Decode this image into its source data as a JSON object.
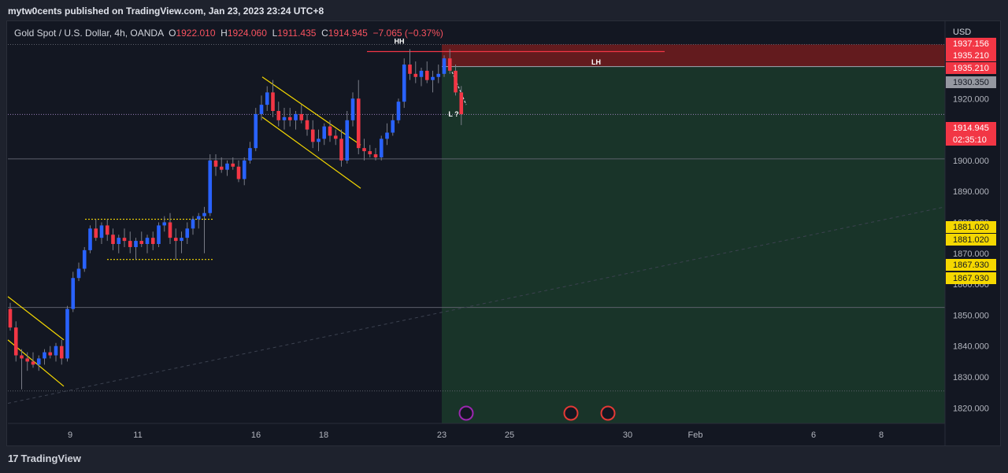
{
  "header": {
    "published": "mytw0cents published on TradingView.com, Jan 23, 2023 23:24 UTC+8"
  },
  "legend": {
    "symbol": "Gold Spot / U.S. Dollar, 4h, OANDA",
    "o_label": "O",
    "o": "1922.010",
    "h_label": "H",
    "h": "1924.060",
    "l_label": "L",
    "l": "1911.435",
    "c_label": "C",
    "c": "1914.945",
    "change": "−7.065 (−0.37%)"
  },
  "footer": {
    "brand": "TradingView",
    "logo_icon": "tradingview-logo-icon"
  },
  "colors": {
    "background": "#131722",
    "grid": "#2a2e39",
    "up": "#2962ff",
    "down": "#f23645",
    "pattern": "#f5d800",
    "stop_zone": "#7f1d1d",
    "target_zone": "#1b3a2a"
  },
  "chart_data": {
    "type": "candlestick",
    "title": "",
    "xlabel": "",
    "ylabel": "",
    "currency_label": "USD",
    "ylim": [
      1815,
      1945
    ],
    "x_ticks": [
      "9",
      "11",
      "16",
      "18",
      "23",
      "25",
      "30",
      "Feb",
      "6",
      "8"
    ],
    "y_ticks": [
      "1820.000",
      "1830.000",
      "1840.000",
      "1850.000",
      "1860.000",
      "1870.000",
      "1880.000",
      "1890.000",
      "1900.000",
      "1920.000"
    ],
    "price_labels": [
      {
        "text": "1937.156",
        "value": 1937.156,
        "kind": "red"
      },
      {
        "text": "1935.210",
        "value": 1935.21,
        "kind": "red"
      },
      {
        "text": "1935.210",
        "value": 1935.21,
        "kind": "red"
      },
      {
        "text": "1930.350",
        "value": 1930.35,
        "kind": "gray"
      },
      {
        "text": "1914.945",
        "value": 1914.945,
        "kind": "red"
      },
      {
        "text": "02:35:10",
        "value": 1914.945,
        "kind": "countdown"
      },
      {
        "text": "1881.020",
        "value": 1881.02,
        "kind": "yellow"
      },
      {
        "text": "1881.020",
        "value": 1881.02,
        "kind": "yellow"
      },
      {
        "text": "1867.930",
        "value": 1867.93,
        "kind": "yellow"
      },
      {
        "text": "1867.930",
        "value": 1867.93,
        "kind": "yellow"
      }
    ],
    "annotations": [
      {
        "text": "HH",
        "value": 1938.5
      },
      {
        "text": "LH",
        "value": 1931.8
      },
      {
        "text": "L ?",
        "value": 1915
      }
    ],
    "horizontal_levels": [
      1937.5,
      1914.9,
      1900.5,
      1852.5,
      1825.5
    ],
    "zones": [
      {
        "name": "stop",
        "top": 1937.5,
        "bottom": 1930.35
      },
      {
        "name": "target",
        "top": 1930.35,
        "bottom": 1815
      }
    ],
    "candles": [
      {
        "o": 1852,
        "h": 1854,
        "l": 1845,
        "c": 1846
      },
      {
        "o": 1846,
        "h": 1848,
        "l": 1835,
        "c": 1837
      },
      {
        "o": 1837,
        "h": 1839,
        "l": 1826,
        "c": 1836
      },
      {
        "o": 1836,
        "h": 1838,
        "l": 1832,
        "c": 1835
      },
      {
        "o": 1835,
        "h": 1838,
        "l": 1833,
        "c": 1834
      },
      {
        "o": 1834,
        "h": 1837,
        "l": 1832,
        "c": 1836
      },
      {
        "o": 1836,
        "h": 1839,
        "l": 1834,
        "c": 1838
      },
      {
        "o": 1838,
        "h": 1840,
        "l": 1836,
        "c": 1837
      },
      {
        "o": 1837,
        "h": 1841,
        "l": 1835,
        "c": 1840
      },
      {
        "o": 1840,
        "h": 1842,
        "l": 1834,
        "c": 1836
      },
      {
        "o": 1836,
        "h": 1853,
        "l": 1835,
        "c": 1852
      },
      {
        "o": 1852,
        "h": 1864,
        "l": 1851,
        "c": 1862
      },
      {
        "o": 1862,
        "h": 1867,
        "l": 1861,
        "c": 1865
      },
      {
        "o": 1865,
        "h": 1872,
        "l": 1864,
        "c": 1871
      },
      {
        "o": 1871,
        "h": 1879,
        "l": 1870,
        "c": 1878
      },
      {
        "o": 1878,
        "h": 1881,
        "l": 1874,
        "c": 1875
      },
      {
        "o": 1875,
        "h": 1880,
        "l": 1873,
        "c": 1879
      },
      {
        "o": 1879,
        "h": 1881,
        "l": 1874,
        "c": 1876
      },
      {
        "o": 1876,
        "h": 1878,
        "l": 1871,
        "c": 1873
      },
      {
        "o": 1873,
        "h": 1876,
        "l": 1870,
        "c": 1875
      },
      {
        "o": 1875,
        "h": 1878,
        "l": 1872,
        "c": 1874
      },
      {
        "o": 1874,
        "h": 1877,
        "l": 1870,
        "c": 1872
      },
      {
        "o": 1872,
        "h": 1875,
        "l": 1868,
        "c": 1874
      },
      {
        "o": 1874,
        "h": 1877,
        "l": 1872,
        "c": 1873
      },
      {
        "o": 1873,
        "h": 1876,
        "l": 1870,
        "c": 1875
      },
      {
        "o": 1875,
        "h": 1877,
        "l": 1871,
        "c": 1873
      },
      {
        "o": 1873,
        "h": 1880,
        "l": 1872,
        "c": 1879
      },
      {
        "o": 1879,
        "h": 1882,
        "l": 1877,
        "c": 1880
      },
      {
        "o": 1880,
        "h": 1883,
        "l": 1873,
        "c": 1875
      },
      {
        "o": 1875,
        "h": 1878,
        "l": 1868,
        "c": 1874
      },
      {
        "o": 1874,
        "h": 1877,
        "l": 1870,
        "c": 1875
      },
      {
        "o": 1875,
        "h": 1880,
        "l": 1873,
        "c": 1878
      },
      {
        "o": 1878,
        "h": 1882,
        "l": 1876,
        "c": 1881
      },
      {
        "o": 1881,
        "h": 1883,
        "l": 1878,
        "c": 1882
      },
      {
        "o": 1882,
        "h": 1885,
        "l": 1870,
        "c": 1883
      },
      {
        "o": 1883,
        "h": 1902,
        "l": 1882,
        "c": 1900
      },
      {
        "o": 1900,
        "h": 1902,
        "l": 1895,
        "c": 1898
      },
      {
        "o": 1898,
        "h": 1901,
        "l": 1896,
        "c": 1897
      },
      {
        "o": 1897,
        "h": 1900,
        "l": 1895,
        "c": 1899
      },
      {
        "o": 1899,
        "h": 1901,
        "l": 1897,
        "c": 1898
      },
      {
        "o": 1898,
        "h": 1900,
        "l": 1893,
        "c": 1894
      },
      {
        "o": 1894,
        "h": 1901,
        "l": 1892,
        "c": 1900
      },
      {
        "o": 1900,
        "h": 1906,
        "l": 1899,
        "c": 1904
      },
      {
        "o": 1904,
        "h": 1917,
        "l": 1903,
        "c": 1915
      },
      {
        "o": 1915,
        "h": 1921,
        "l": 1913,
        "c": 1918
      },
      {
        "o": 1918,
        "h": 1924,
        "l": 1916,
        "c": 1922
      },
      {
        "o": 1922,
        "h": 1926,
        "l": 1914,
        "c": 1916
      },
      {
        "o": 1916,
        "h": 1919,
        "l": 1911,
        "c": 1913
      },
      {
        "o": 1913,
        "h": 1917,
        "l": 1910,
        "c": 1914
      },
      {
        "o": 1914,
        "h": 1917,
        "l": 1911,
        "c": 1913
      },
      {
        "o": 1913,
        "h": 1916,
        "l": 1910,
        "c": 1915
      },
      {
        "o": 1915,
        "h": 1918,
        "l": 1912,
        "c": 1913
      },
      {
        "o": 1913,
        "h": 1915,
        "l": 1908,
        "c": 1910
      },
      {
        "o": 1910,
        "h": 1913,
        "l": 1904,
        "c": 1906
      },
      {
        "o": 1906,
        "h": 1910,
        "l": 1903,
        "c": 1907
      },
      {
        "o": 1907,
        "h": 1912,
        "l": 1905,
        "c": 1911
      },
      {
        "o": 1911,
        "h": 1913,
        "l": 1906,
        "c": 1908
      },
      {
        "o": 1908,
        "h": 1910,
        "l": 1905,
        "c": 1907
      },
      {
        "o": 1907,
        "h": 1910,
        "l": 1898,
        "c": 1900
      },
      {
        "o": 1900,
        "h": 1916,
        "l": 1899,
        "c": 1913
      },
      {
        "o": 1913,
        "h": 1922,
        "l": 1911,
        "c": 1920
      },
      {
        "o": 1920,
        "h": 1926,
        "l": 1902,
        "c": 1904
      },
      {
        "o": 1904,
        "h": 1907,
        "l": 1900,
        "c": 1903
      },
      {
        "o": 1903,
        "h": 1905,
        "l": 1901,
        "c": 1902
      },
      {
        "o": 1902,
        "h": 1904,
        "l": 1900,
        "c": 1901
      },
      {
        "o": 1901,
        "h": 1908,
        "l": 1900,
        "c": 1907
      },
      {
        "o": 1907,
        "h": 1912,
        "l": 1905,
        "c": 1909
      },
      {
        "o": 1909,
        "h": 1915,
        "l": 1908,
        "c": 1913
      },
      {
        "o": 1913,
        "h": 1920,
        "l": 1912,
        "c": 1919
      },
      {
        "o": 1919,
        "h": 1933,
        "l": 1917,
        "c": 1931
      },
      {
        "o": 1931,
        "h": 1936,
        "l": 1926,
        "c": 1928
      },
      {
        "o": 1928,
        "h": 1932,
        "l": 1925,
        "c": 1927
      },
      {
        "o": 1927,
        "h": 1930,
        "l": 1924,
        "c": 1929
      },
      {
        "o": 1929,
        "h": 1932,
        "l": 1925,
        "c": 1926
      },
      {
        "o": 1926,
        "h": 1929,
        "l": 1922,
        "c": 1927
      },
      {
        "o": 1927,
        "h": 1931,
        "l": 1925,
        "c": 1928
      },
      {
        "o": 1928,
        "h": 1934,
        "l": 1927,
        "c": 1933
      },
      {
        "o": 1933,
        "h": 1936,
        "l": 1928,
        "c": 1929
      },
      {
        "o": 1929,
        "h": 1931,
        "l": 1921,
        "c": 1922
      },
      {
        "o": 1922,
        "h": 1924.06,
        "l": 1911.435,
        "c": 1914.945
      }
    ]
  }
}
